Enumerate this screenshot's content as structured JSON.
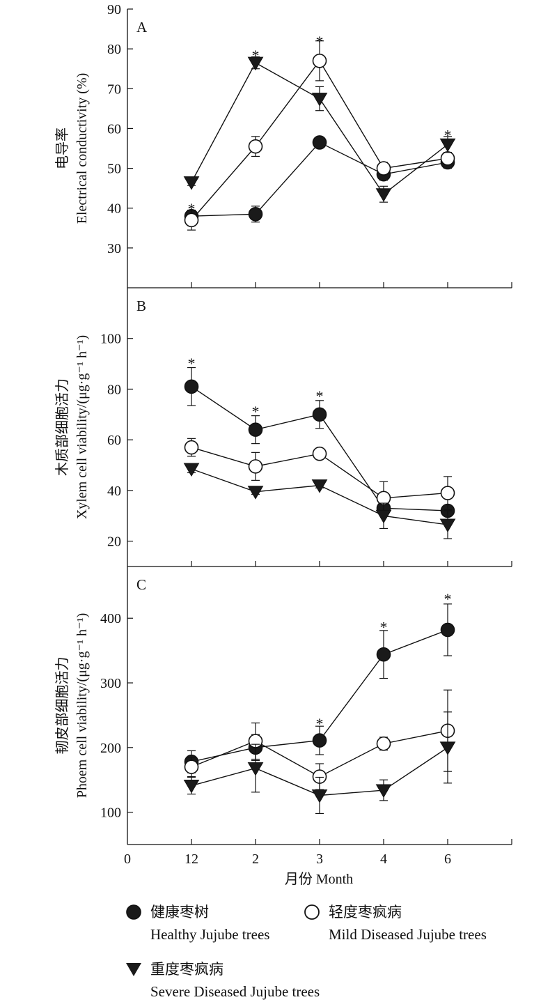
{
  "chart_data": [
    {
      "type": "line",
      "panel_label": "A",
      "ylabel_cn": "电导率",
      "ylabel_en": "Electrical conductivity (%)",
      "ylim": [
        20,
        90
      ],
      "yticks": [
        30,
        40,
        50,
        60,
        70,
        80,
        90
      ],
      "x": [
        1,
        2,
        3,
        4,
        5
      ],
      "series": [
        {
          "key": "healthy",
          "values": [
            38,
            38.5,
            56.5,
            48.5,
            51.5
          ],
          "err": [
            1.5,
            2,
            1,
            1.5,
            1.5
          ]
        },
        {
          "key": "mild",
          "values": [
            37,
            55.5,
            77,
            50,
            52.5
          ],
          "err": [
            2.5,
            2.5,
            5,
            1.5,
            1.5
          ]
        },
        {
          "key": "severe",
          "values": [
            46.5,
            76.5,
            67.5,
            43.5,
            56
          ],
          "err": [
            0.8,
            1.5,
            3,
            2,
            2
          ]
        }
      ],
      "significance": [
        {
          "x": 1,
          "y": 41
        },
        {
          "x": 2,
          "y": 79.5
        },
        {
          "x": 3,
          "y": 83
        },
        {
          "x": 5,
          "y": 59.5
        }
      ]
    },
    {
      "type": "line",
      "panel_label": "B",
      "ylabel_cn": "木质部细胞活力",
      "ylabel_en": "Xylem cell viability/(μg·g⁻¹ h⁻¹)",
      "ylim": [
        10,
        120
      ],
      "yticks": [
        20,
        40,
        60,
        80,
        100
      ],
      "x": [
        1,
        2,
        3,
        4,
        5
      ],
      "series": [
        {
          "key": "healthy",
          "values": [
            81,
            64,
            70,
            33,
            32
          ],
          "err": [
            7.5,
            5.5,
            5.5,
            2.5,
            2
          ]
        },
        {
          "key": "mild",
          "values": [
            57,
            49.5,
            54.5,
            37,
            39
          ],
          "err": [
            3.5,
            5.5,
            2,
            6.5,
            6.5
          ]
        },
        {
          "key": "severe",
          "values": [
            48.5,
            39.5,
            42,
            30,
            26.5
          ],
          "err": [
            1.5,
            1,
            1,
            5,
            5.5
          ]
        }
      ],
      "significance": [
        {
          "x": 1,
          "y": 92
        },
        {
          "x": 2,
          "y": 73
        },
        {
          "x": 3,
          "y": 79
        }
      ]
    },
    {
      "type": "line",
      "panel_label": "C",
      "ylabel_cn": "韧皮部细胞活力",
      "ylabel_en": "Phoem cell viability/(μg·g⁻¹ h⁻¹)",
      "ylim": [
        50,
        480
      ],
      "yticks": [
        100,
        200,
        300,
        400
      ],
      "x": [
        1,
        2,
        3,
        4,
        5
      ],
      "series": [
        {
          "key": "healthy",
          "values": [
            178,
            200,
            211,
            344,
            382
          ],
          "err": [
            17,
            20,
            22,
            37,
            40
          ]
        },
        {
          "key": "mild",
          "values": [
            170,
            210,
            155,
            206,
            226
          ],
          "err": [
            15,
            28,
            20,
            10,
            63
          ]
        },
        {
          "key": "severe",
          "values": [
            141,
            168,
            126,
            134,
            200
          ],
          "err": [
            13,
            37,
            28,
            16,
            55
          ]
        }
      ],
      "significance": [
        {
          "x": 3,
          "y": 244
        },
        {
          "x": 4,
          "y": 393
        },
        {
          "x": 5,
          "y": 437
        }
      ]
    }
  ],
  "x_axis": {
    "label": "月份 Month",
    "xlim": [
      0,
      6
    ],
    "ticks": [
      {
        "x": 0,
        "label": "0"
      },
      {
        "x": 1,
        "label": "12"
      },
      {
        "x": 2,
        "label": "2"
      },
      {
        "x": 3,
        "label": "3"
      },
      {
        "x": 4,
        "label": "4"
      },
      {
        "x": 5,
        "label": "6"
      }
    ]
  },
  "significance_symbol": "*",
  "legend": [
    {
      "key": "healthy",
      "label_cn": "健康枣树",
      "label_en": "Healthy Jujube trees",
      "marker": "filled-circle"
    },
    {
      "key": "mild",
      "label_cn": "轻度枣疯病",
      "label_en": "Mild Diseased Jujube trees",
      "marker": "open-circle"
    },
    {
      "key": "severe",
      "label_cn": "重度枣疯病",
      "label_en": "Severe Diseased Jujube trees",
      "marker": "filled-triangle-down"
    }
  ],
  "colors": {
    "ink": "#111111",
    "fill": "#1a1a1a",
    "open": "#ffffff"
  }
}
